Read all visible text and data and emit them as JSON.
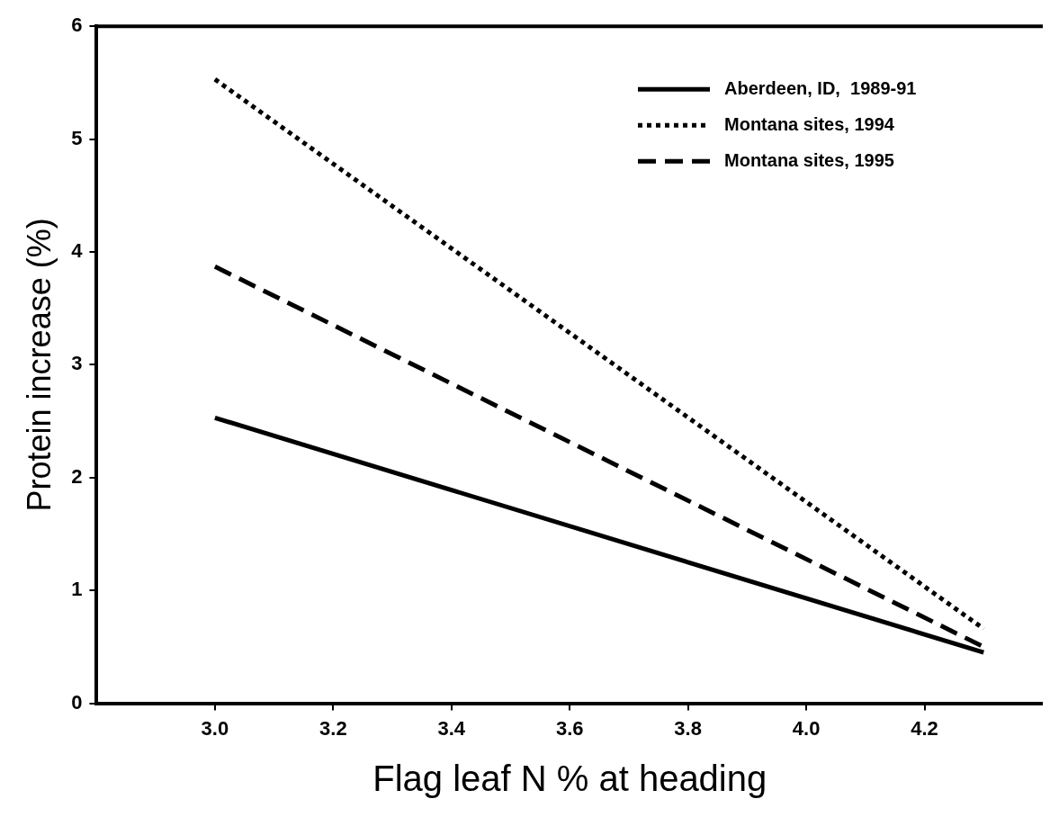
{
  "chart_data": {
    "type": "line",
    "xlabel": "Flag leaf N % at heading",
    "ylabel": "Protein increase (%)",
    "x": [
      3.0,
      4.3
    ],
    "series": [
      {
        "name": "Aberdeen, ID,  1989-91",
        "color": "#000000",
        "values": [
          2.53,
          0.45
        ],
        "line_style": "solid"
      },
      {
        "name": "Montana sites, 1994",
        "color": "#000000",
        "values": [
          5.53,
          0.66
        ],
        "line_style": "dotted"
      },
      {
        "name": "Montana sites, 1995",
        "color": "#000000",
        "values": [
          3.87,
          0.5
        ],
        "line_style": "dashed"
      }
    ],
    "xlim": [
      2.8,
      4.4
    ],
    "xticks": [
      {
        "value": 3.0,
        "label": "3.0"
      },
      {
        "value": 3.2,
        "label": "3.2"
      },
      {
        "value": 3.4,
        "label": "3.4"
      },
      {
        "value": 3.6,
        "label": "3.6"
      },
      {
        "value": 3.8,
        "label": "3.8"
      },
      {
        "value": 4.0,
        "label": "4.0"
      },
      {
        "value": 4.2,
        "label": "4.2"
      }
    ],
    "ylim": [
      0,
      6
    ],
    "yticks": [
      0,
      1,
      2,
      3,
      4,
      5,
      6
    ],
    "grid": false,
    "legend": "top right",
    "marker": "none"
  }
}
